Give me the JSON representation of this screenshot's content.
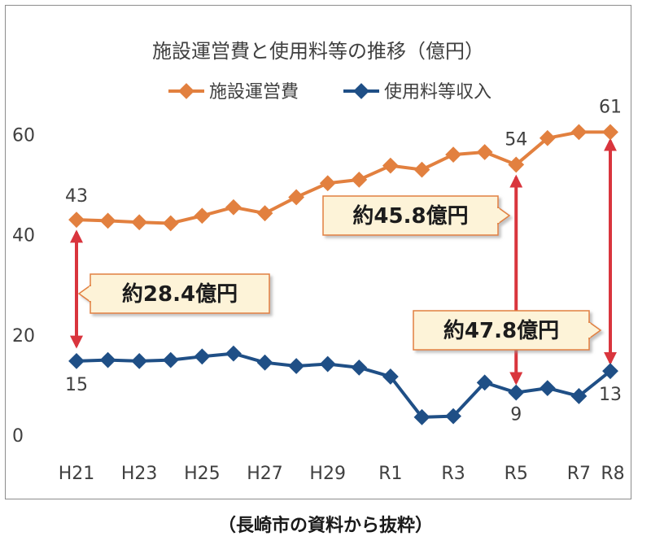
{
  "chart_data": {
    "type": "line",
    "title": "施設運営費と使用料等の推移（億円）",
    "categories": [
      "H21",
      "H22",
      "H23",
      "H24",
      "H25",
      "H26",
      "H27",
      "H28",
      "H29",
      "H30",
      "R1",
      "R2",
      "R3",
      "R4",
      "R5",
      "R6",
      "R7",
      "R8"
    ],
    "tick_labels": [
      {
        "category": "H21",
        "label": "H21"
      },
      {
        "category": "H23",
        "label": "H23"
      },
      {
        "category": "H25",
        "label": "H25"
      },
      {
        "category": "H27",
        "label": "H27"
      },
      {
        "category": "H29",
        "label": "H29"
      },
      {
        "category": "R1",
        "label": "R1"
      },
      {
        "category": "R3",
        "label": "R3"
      },
      {
        "category": "R5",
        "label": "R5"
      },
      {
        "category": "R7",
        "label": "R7"
      },
      {
        "category": "R8",
        "label": "R8"
      }
    ],
    "yticks": [
      0,
      20,
      40,
      60
    ],
    "ylim": [
      0,
      63
    ],
    "grid": false,
    "legend_position": "top",
    "series": [
      {
        "name": "施設運営費",
        "color": "#e2803f",
        "values": [
          43,
          42.8,
          42.5,
          42.3,
          43.8,
          45.5,
          44.3,
          47.5,
          50.3,
          51,
          53.8,
          53,
          56,
          56.5,
          54,
          59.3,
          60.5,
          60.5
        ]
      },
      {
        "name": "使用料等収入",
        "color": "#1f4f86",
        "values": [
          14.8,
          15,
          14.8,
          15,
          15.7,
          16.3,
          14.5,
          13.8,
          14.2,
          13.5,
          11.7,
          3.6,
          3.8,
          10.5,
          8.5,
          9.4,
          7.8,
          12.8
        ]
      }
    ],
    "data_labels": [
      {
        "series": 0,
        "index": 0,
        "text": "43"
      },
      {
        "series": 0,
        "index": 14,
        "text": "54"
      },
      {
        "series": 0,
        "index": 17,
        "text": "61"
      },
      {
        "series": 1,
        "index": 0,
        "text": "15"
      },
      {
        "series": 1,
        "index": 14,
        "text": "9"
      },
      {
        "series": 1,
        "index": 17,
        "text": "13"
      }
    ],
    "annotations": [
      {
        "text": "約28.4億円",
        "index": 0,
        "from": 40.5,
        "to": 17.8
      },
      {
        "text": "約45.8億円",
        "index": 14,
        "from": 51.5,
        "to": 10.5
      },
      {
        "text": "約47.8億円",
        "index": 17,
        "from": 58.8,
        "to": 14.5
      }
    ],
    "arrow_color": "#d9353d",
    "callout_fill": "#fdf3d8",
    "callout_border": "#e2803f"
  },
  "source_note": "（長崎市の資料から抜粋）"
}
